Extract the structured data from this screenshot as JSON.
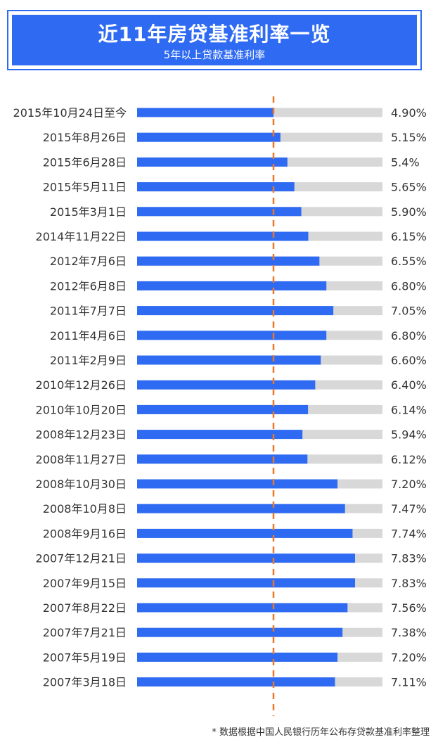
{
  "header": {
    "title": "近11年房贷基准利率一览",
    "subtitle": "5年以上贷款基准利率"
  },
  "footnote": "* 数据根据中国人民银行历年公布存贷款基准利率整理",
  "colors": {
    "bar": "#2f6bf2",
    "track": "#d8d8d8",
    "reference_line": "#e8792a",
    "text": "#333333"
  },
  "chart_data": {
    "type": "bar",
    "orientation": "horizontal",
    "reference_line": 4.9,
    "categories": [
      "2015年10月24日至今",
      "2015年8月26日",
      "2015年6月28日",
      "2015年5月11日",
      "2015年3月1日",
      "2014年11月22日",
      "2012年7月6日",
      "2012年6月8日",
      "2011年7月7日",
      "2011年4月6日",
      "2011年2月9日",
      "2010年12月26日",
      "2010年10月20日",
      "2008年12月23日",
      "2008年11月27日",
      "2008年10月30日",
      "2008年10月8日",
      "2008年9月16日",
      "2007年12月21日",
      "2007年9月15日",
      "2007年8月22日",
      "2007年7月21日",
      "2007年5月19日",
      "2007年3月18日"
    ],
    "values": [
      4.9,
      5.15,
      5.4,
      5.65,
      5.9,
      6.15,
      6.55,
      6.8,
      7.05,
      6.8,
      6.6,
      6.4,
      6.14,
      5.94,
      6.12,
      7.2,
      7.47,
      7.74,
      7.83,
      7.83,
      7.56,
      7.38,
      7.2,
      7.11
    ],
    "value_labels": [
      "4.90%",
      "5.15%",
      "5.4%",
      "5.65%",
      "5.90%",
      "6.15%",
      "6.55%",
      "6.80%",
      "7.05%",
      "6.80%",
      "6.60%",
      "6.40%",
      "6.14%",
      "5.94%",
      "6.12%",
      "7.20%",
      "7.47%",
      "7.74%",
      "7.83%",
      "7.83%",
      "7.56%",
      "7.38%",
      "7.20%",
      "7.11%"
    ]
  }
}
